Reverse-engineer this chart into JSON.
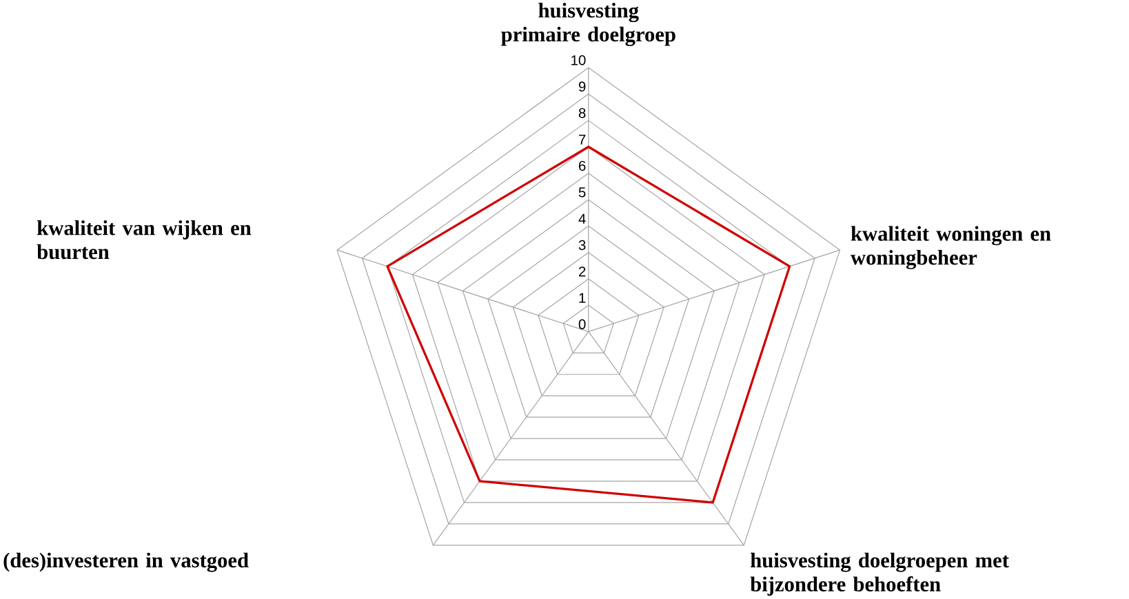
{
  "chart_data": {
    "type": "radar",
    "categories": [
      "huisvesting primaire doelgroep",
      "kwaliteit woningen en woningbeheer",
      "huisvesting doelgroepen met bijzondere behoeften",
      "(des)investeren in vastgoed",
      "kwaliteit van wijken en buurten"
    ],
    "series": [
      {
        "color": "#d00000",
        "values": [
          7,
          8,
          8,
          7,
          8
        ]
      }
    ],
    "ylim": [
      0,
      10
    ],
    "yticks": [
      0,
      1,
      2,
      3,
      4,
      5,
      6,
      7,
      8,
      9,
      10
    ],
    "grid": true,
    "marker": "none",
    "line_style": "solid"
  }
}
